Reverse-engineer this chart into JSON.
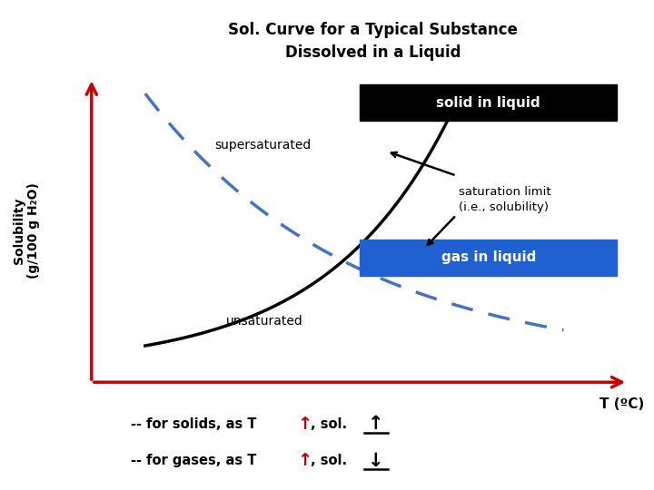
{
  "title_line1": "Sol. Curve for a Typical Substance",
  "title_line2": "Dissolved in a Liquid",
  "title_fontsize": 12,
  "ylabel_line1": "Solubility",
  "ylabel_line2": "(g/100 g H₂O)",
  "xlabel": "T (ºC)",
  "background_color": "#ffffff",
  "solid_curve_color": "#000000",
  "gas_curve_color": "#4472C4",
  "axis_color": "#cc0000",
  "label_supersaturated": "supersaturated",
  "label_unsaturated": "unsaturated",
  "label_solid": "solid in liquid",
  "label_gas": "gas in liquid",
  "label_saturation": "saturation limit\n(i.e., solubility)",
  "solid_box_color": "#000000",
  "gas_box_color": "#2060D0",
  "solid_text_color": "#ffffff",
  "gas_text_color": "#ffffff"
}
